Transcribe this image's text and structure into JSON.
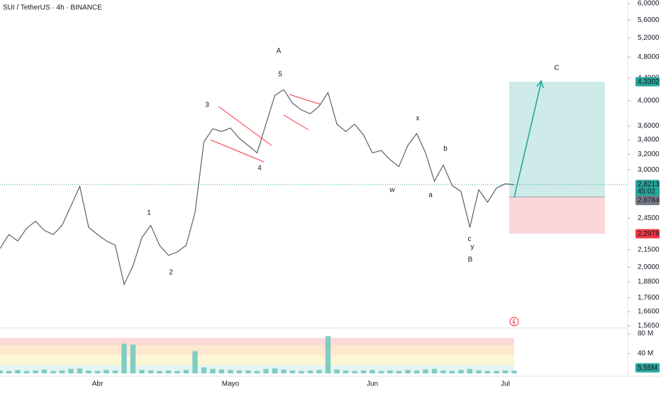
{
  "chart_data": {
    "type": "line",
    "title": "SUI / TetherUS · 4h · BINANCE",
    "color": "#5d606b",
    "log": true,
    "grid": false,
    "categories": [
      null,
      null,
      null,
      null,
      null,
      null,
      null,
      null,
      null,
      null,
      null,
      "Abr",
      null,
      null,
      null,
      null,
      null,
      null,
      null,
      null,
      null,
      null,
      null,
      null,
      null,
      null,
      "Mayo",
      null,
      null,
      null,
      null,
      null,
      null,
      null,
      null,
      null,
      null,
      null,
      null,
      null,
      null,
      null,
      "Jun",
      null,
      null,
      null,
      null,
      null,
      null,
      null,
      null,
      null,
      null,
      null,
      null,
      null,
      null,
      "Jul",
      null
    ],
    "values": [
      2.16,
      2.29,
      2.23,
      2.35,
      2.42,
      2.33,
      2.29,
      2.38,
      2.58,
      2.8,
      2.36,
      2.29,
      2.23,
      2.19,
      1.86,
      2.01,
      2.26,
      2.38,
      2.19,
      2.1,
      2.13,
      2.19,
      2.51,
      3.37,
      3.56,
      3.52,
      3.57,
      3.42,
      3.32,
      3.22,
      3.63,
      4.09,
      4.19,
      3.96,
      3.85,
      3.79,
      3.91,
      4.14,
      3.63,
      3.52,
      3.63,
      3.47,
      3.22,
      3.25,
      3.13,
      3.04,
      3.32,
      3.49,
      3.22,
      2.86,
      3.06,
      2.81,
      2.74,
      2.36,
      2.76,
      2.62,
      2.78,
      2.83,
      2.82
    ],
    "ylim": [
      1.565,
      6.0
    ],
    "yticks": [
      {
        "value": 6.0,
        "label": "6,0000"
      },
      {
        "value": 5.6,
        "label": "5,6000"
      },
      {
        "value": 5.2,
        "label": "5,2000"
      },
      {
        "value": 4.8,
        "label": "4,8000"
      },
      {
        "value": 4.4,
        "label": "4,4000"
      },
      {
        "value": 4.0,
        "label": "4,0000"
      },
      {
        "value": 3.6,
        "label": "3,6000"
      },
      {
        "value": 3.4,
        "label": "3,4000"
      },
      {
        "value": 3.2,
        "label": "3,2000"
      },
      {
        "value": 3.0,
        "label": "3,0000"
      },
      {
        "value": 2.45,
        "label": "2,4500"
      },
      {
        "value": 2.15,
        "label": "2,1500"
      },
      {
        "value": 2.0,
        "label": "2,0000"
      },
      {
        "value": 1.88,
        "label": "1,8800"
      },
      {
        "value": 1.76,
        "label": "1,7600"
      },
      {
        "value": 1.66,
        "label": "1,6600"
      },
      {
        "value": 1.565,
        "label": "1,5650"
      }
    ],
    "current_price": {
      "value": 2.8213,
      "label": "2,8213",
      "countdown": "45:02"
    },
    "position": {
      "target": {
        "value": 4.3302,
        "label": "4,3302"
      },
      "entry": {
        "value": 2.6784,
        "label": "2,6784"
      },
      "stop": {
        "value": 2.2978,
        "label": "2,2978"
      }
    },
    "annotations": [
      {
        "text": "A",
        "color": "#f23645"
      },
      {
        "text": "5",
        "color": "#131722"
      },
      {
        "text": "3",
        "color": "#131722"
      },
      {
        "text": "1",
        "color": "#131722"
      },
      {
        "text": "2",
        "color": "#131722"
      },
      {
        "text": "4",
        "color": "#131722"
      },
      {
        "text": "x",
        "color": "#f23645"
      },
      {
        "text": "b",
        "color": "#f5a623"
      },
      {
        "text": "w",
        "color": "#f23645"
      },
      {
        "text": "a",
        "color": "#f5a623"
      },
      {
        "text": "c",
        "color": "#f5a623"
      },
      {
        "text": "y",
        "color": "#f23645"
      },
      {
        "text": "B",
        "color": "#f23645"
      },
      {
        "text": "C",
        "color": "#f23645"
      }
    ],
    "volume": {
      "color": "#80cbc4",
      "values": [
        6,
        5,
        7,
        5,
        6,
        8,
        5,
        6,
        9,
        10,
        6,
        5,
        7,
        6,
        60,
        58,
        7,
        6,
        5,
        6,
        5,
        7,
        45,
        12,
        9,
        8,
        7,
        6,
        6,
        5,
        9,
        10,
        8,
        6,
        5,
        6,
        7,
        75,
        8,
        6,
        5,
        6,
        7,
        5,
        6,
        5,
        7,
        6,
        8,
        9,
        6,
        5,
        7,
        9,
        6,
        5,
        5,
        6,
        5.55
      ],
      "ylim": [
        0,
        80
      ],
      "yticks": [
        {
          "value": 80,
          "label": "80 M"
        },
        {
          "value": 40,
          "label": "40 M"
        }
      ],
      "last": {
        "value": 5.55,
        "label": "5,55M"
      }
    }
  }
}
